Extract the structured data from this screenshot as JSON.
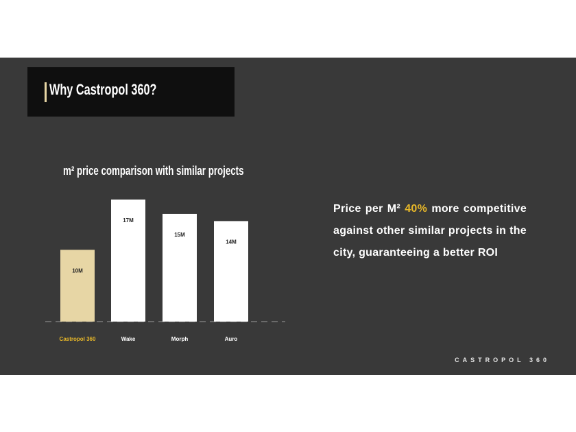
{
  "slide": {
    "title": "Why Castropol 360?",
    "chart_title": "m² price comparison with similar projects",
    "body": {
      "line1_pre": "Price per M²",
      "line1_highlight": "40%",
      "line1_post": "more competitive",
      "line2": "against other similar projects in the",
      "line3": "city, guaranteeing a better ROI"
    },
    "brand_mark": "CASTROPOL 360"
  },
  "colors": {
    "background": "#393939",
    "title_box": "#0f0f0f",
    "accent_bar": "#e7d6a5",
    "highlight": "#e8b829",
    "bar_highlight": "#e7d6a5",
    "bar_default": "#ffffff",
    "category_highlight": "#e8b829",
    "category_default": "#ffffff",
    "baseline": "#9a9a9a"
  },
  "chart_data": {
    "type": "bar",
    "title": "m² price comparison with similar projects",
    "categories": [
      "Castropol 360",
      "Wake",
      "Morph",
      "Auro"
    ],
    "values": [
      10,
      17,
      15,
      14
    ],
    "data_labels": [
      "10M",
      "17M",
      "15M",
      "14M"
    ],
    "highlight_index": 0,
    "ylim": [
      0,
      17
    ],
    "grid": false,
    "legend": "none"
  }
}
